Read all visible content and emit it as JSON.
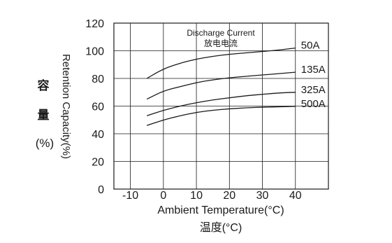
{
  "chart_data": {
    "type": "line",
    "title": "",
    "xlabel": "Ambient Temperature(°C)",
    "xlabel_cn": "温度(°C)",
    "ylabel": "Retention Capacity(%)",
    "ylabel_cn": [
      "容",
      "量",
      "(%)"
    ],
    "xlim": [
      -15,
      50
    ],
    "ylim": [
      0,
      120
    ],
    "xticks": [
      -10,
      0,
      10,
      20,
      30,
      40
    ],
    "yticks": [
      0,
      20,
      40,
      60,
      80,
      100,
      120
    ],
    "grid": true,
    "legend_title": "Discharge Current",
    "legend_title_cn": "放电电流",
    "series": [
      {
        "name": "50A",
        "x": [
          -5,
          0,
          5,
          10,
          15,
          20,
          25,
          30,
          35,
          40
        ],
        "y": [
          80,
          87,
          91,
          94,
          96,
          97.5,
          98.5,
          99.5,
          100.5,
          102
        ]
      },
      {
        "name": "135A",
        "x": [
          -5,
          0,
          5,
          10,
          15,
          20,
          25,
          30,
          35,
          40
        ],
        "y": [
          65,
          71,
          74,
          77,
          79,
          80.5,
          81.5,
          82.5,
          83.5,
          84.5
        ]
      },
      {
        "name": "325A",
        "x": [
          -5,
          0,
          5,
          10,
          15,
          20,
          25,
          30,
          35,
          40
        ],
        "y": [
          53,
          57,
          60,
          62.5,
          64.5,
          66,
          67.5,
          68.5,
          69.5,
          70
        ]
      },
      {
        "name": "500A",
        "x": [
          -5,
          0,
          5,
          10,
          15,
          20,
          25,
          30,
          35,
          40
        ],
        "y": [
          46,
          50,
          53,
          55.5,
          57,
          58,
          58.8,
          59.2,
          59.5,
          59.8
        ]
      }
    ]
  }
}
